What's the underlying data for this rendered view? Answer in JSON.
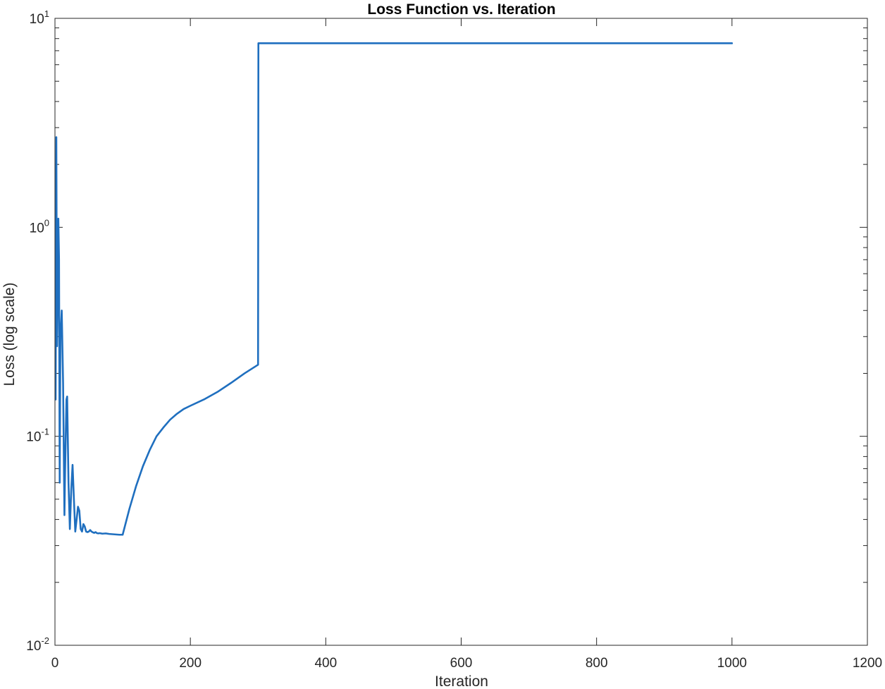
{
  "chart_data": {
    "type": "line",
    "title": "Loss Function vs. Iteration",
    "xlabel": "Iteration",
    "ylabel": "Loss (log scale)",
    "xlim": [
      0,
      1200
    ],
    "ylim": [
      0.01,
      10
    ],
    "yscale": "log",
    "grid": false,
    "legend": "none",
    "x_ticks": [
      {
        "value": 0,
        "label": "0"
      },
      {
        "value": 200,
        "label": "200"
      },
      {
        "value": 400,
        "label": "400"
      },
      {
        "value": 600,
        "label": "600"
      },
      {
        "value": 800,
        "label": "800"
      },
      {
        "value": 1000,
        "label": "1000"
      },
      {
        "value": 1200,
        "label": "1200"
      }
    ],
    "y_ticks": [
      {
        "value": 0.01,
        "base": "10",
        "exponent": "-2"
      },
      {
        "value": 0.1,
        "base": "10",
        "exponent": "-1"
      },
      {
        "value": 1,
        "base": "10",
        "exponent": "0"
      },
      {
        "value": 10,
        "base": "10",
        "exponent": "1"
      }
    ],
    "series": [
      {
        "color": "#1f6fbf",
        "x": [
          1,
          2,
          3,
          4,
          5,
          6,
          7,
          8,
          10,
          12,
          14,
          15,
          17,
          18,
          20,
          22,
          24,
          26,
          28,
          30,
          32,
          34,
          36,
          38,
          40,
          42,
          44,
          46,
          48,
          50,
          52,
          54,
          56,
          58,
          60,
          62,
          64,
          66,
          70,
          75,
          80,
          85,
          90,
          95,
          100,
          110,
          120,
          130,
          140,
          150,
          160,
          170,
          180,
          190,
          200,
          220,
          240,
          260,
          280,
          300,
          300.5,
          400,
          500,
          600,
          700,
          800,
          900,
          1000
        ],
        "y": [
          0.15,
          2.7,
          0.27,
          0.5,
          1.1,
          0.7,
          0.06,
          0.3,
          0.4,
          0.18,
          0.042,
          0.07,
          0.15,
          0.155,
          0.06,
          0.036,
          0.055,
          0.073,
          0.05,
          0.035,
          0.04,
          0.046,
          0.044,
          0.036,
          0.035,
          0.038,
          0.037,
          0.035,
          0.0348,
          0.035,
          0.0356,
          0.035,
          0.0347,
          0.0345,
          0.0348,
          0.0344,
          0.0343,
          0.0344,
          0.0342,
          0.0343,
          0.0341,
          0.034,
          0.0339,
          0.0338,
          0.0338,
          0.045,
          0.058,
          0.072,
          0.086,
          0.1,
          0.11,
          0.12,
          0.128,
          0.135,
          0.14,
          0.15,
          0.163,
          0.18,
          0.2,
          0.22,
          7.6,
          7.6,
          7.6,
          7.6,
          7.6,
          7.6,
          7.6,
          7.6
        ]
      }
    ]
  }
}
